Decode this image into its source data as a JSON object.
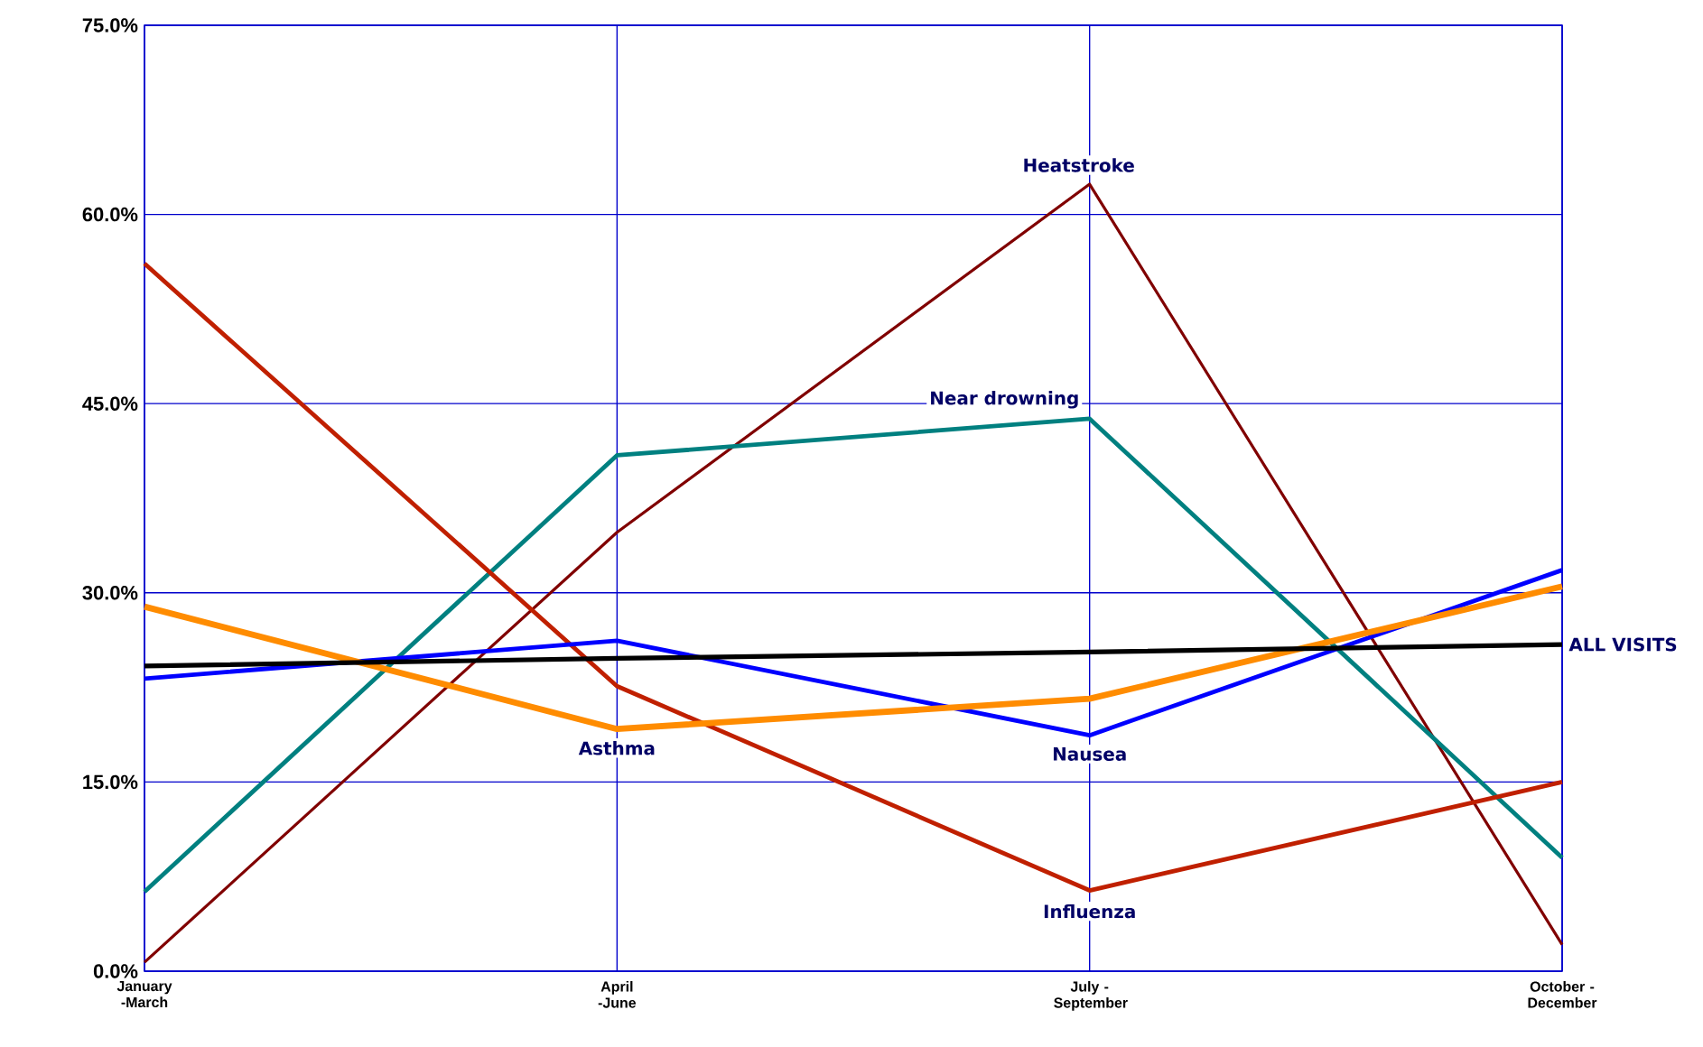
{
  "chart_data": {
    "type": "line",
    "categories": [
      "January -March",
      "April -June",
      "July -September",
      "October -December"
    ],
    "ylim": [
      0,
      75
    ],
    "yticks": [
      {
        "value": 0,
        "label": "0.0%"
      },
      {
        "value": 15,
        "label": "15.0%"
      },
      {
        "value": 30,
        "label": "30.0%"
      },
      {
        "value": 45,
        "label": "45.0%"
      },
      {
        "value": 60,
        "label": "60.0%"
      },
      {
        "value": 75,
        "label": "75.0%"
      }
    ],
    "grid": true,
    "marker": "none",
    "line_style": "solid",
    "series": [
      {
        "name": "Heatstroke",
        "color": "#800000",
        "values": [
          0.7,
          34.8,
          62.4,
          2.1
        ]
      },
      {
        "name": "Near drowning",
        "color": "#008080",
        "values": [
          6.3,
          40.9,
          43.8,
          9.0
        ]
      },
      {
        "name": "Influenza",
        "color": "#c02000",
        "values": [
          56.1,
          22.6,
          6.4,
          15.0
        ]
      },
      {
        "name": "Nausea",
        "color": "#0000ff",
        "values": [
          23.2,
          26.2,
          18.7,
          31.8
        ]
      },
      {
        "name": "Asthma",
        "color": "#ff8c00",
        "values": [
          28.9,
          19.2,
          21.6,
          30.5
        ]
      },
      {
        "name": "ALL VISITS",
        "color": "#000000",
        "values": [
          24.2,
          24.8,
          25.3,
          25.9
        ]
      }
    ]
  }
}
